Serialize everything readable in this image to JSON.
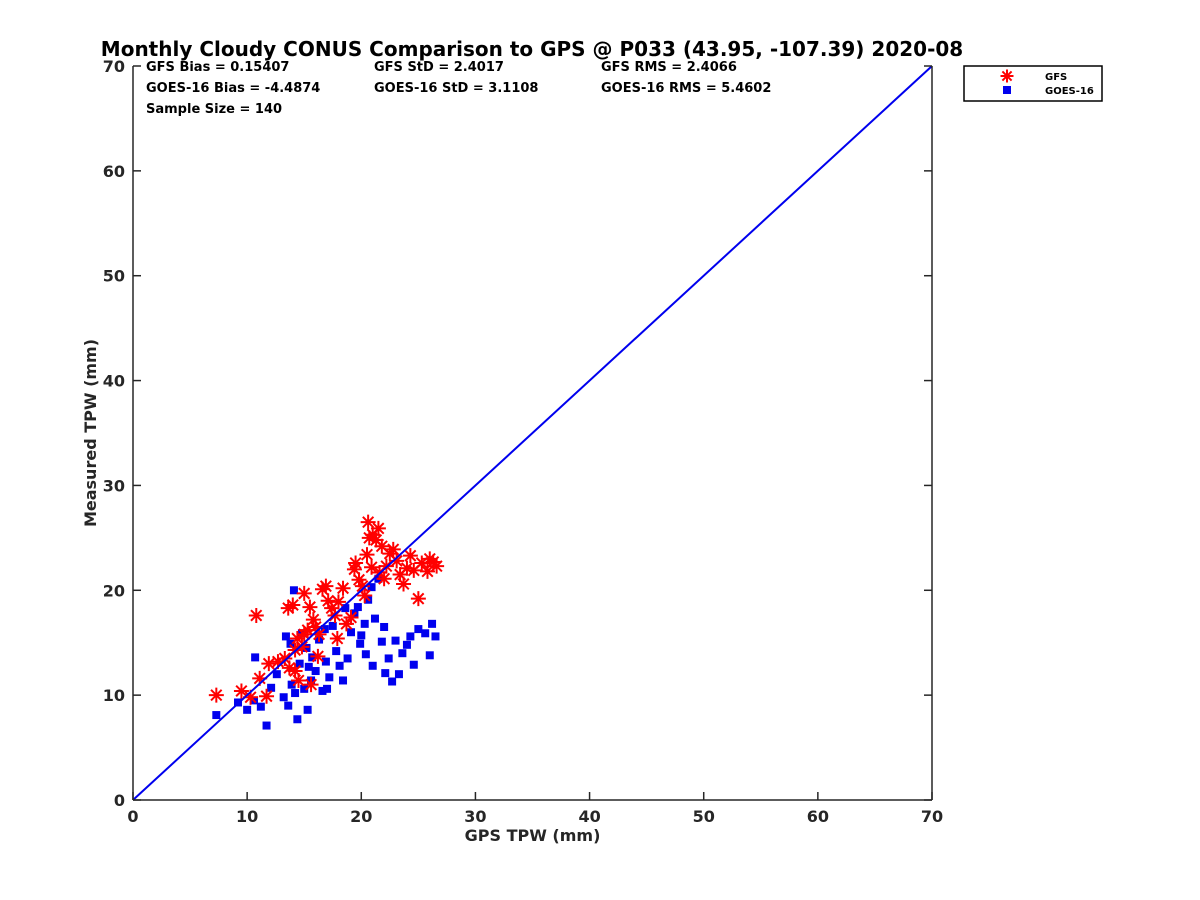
{
  "chart_data": {
    "type": "scatter",
    "title": "Monthly Cloudy CONUS Comparison to GPS @ P033 (43.95, -107.39) 2020-08",
    "xlabel": "GPS TPW (mm)",
    "ylabel": "Measured TPW (mm)",
    "xlim": [
      0,
      70
    ],
    "ylim": [
      0,
      70
    ],
    "xticks": [
      "0",
      "10",
      "20",
      "30",
      "40",
      "50",
      "60",
      "70"
    ],
    "yticks": [
      "0",
      "10",
      "20",
      "30",
      "40",
      "50",
      "60",
      "70"
    ],
    "grid": false,
    "legend_position": "top-right",
    "stats": [
      [
        "GFS Bias = 0.15407",
        "GFS StD = 2.4017",
        "GFS RMS = 2.4066"
      ],
      [
        "GOES-16 Bias = -4.4874",
        "GOES-16 StD = 3.1108",
        "GOES-16 RMS = 5.4602"
      ],
      [
        "Sample Size = 140"
      ]
    ],
    "reference_line": {
      "x": [
        0,
        70
      ],
      "y": [
        0,
        70
      ],
      "color": "#0000ee"
    },
    "series": [
      {
        "name": "GFS",
        "marker": "asterisk",
        "color": "#ff0000",
        "points": [
          [
            7.3,
            10.0
          ],
          [
            9.5,
            10.4
          ],
          [
            10.3,
            9.8
          ],
          [
            11.1,
            11.6
          ],
          [
            11.7,
            9.9
          ],
          [
            10.8,
            17.6
          ],
          [
            11.9,
            13.0
          ],
          [
            12.7,
            13.2
          ],
          [
            13.3,
            13.5
          ],
          [
            13.7,
            12.6
          ],
          [
            14.2,
            12.3
          ],
          [
            14.5,
            11.4
          ],
          [
            13.6,
            18.3
          ],
          [
            14.0,
            18.6
          ],
          [
            14.4,
            15.4
          ],
          [
            14.8,
            14.6
          ],
          [
            15.0,
            15.8
          ],
          [
            15.3,
            16.2
          ],
          [
            15.0,
            19.7
          ],
          [
            15.5,
            18.4
          ],
          [
            15.8,
            17.2
          ],
          [
            16.0,
            16.5
          ],
          [
            16.3,
            15.8
          ],
          [
            16.6,
            20.1
          ],
          [
            16.9,
            20.4
          ],
          [
            17.1,
            19.0
          ],
          [
            17.4,
            18.3
          ],
          [
            17.7,
            17.6
          ],
          [
            18.0,
            18.9
          ],
          [
            18.4,
            20.2
          ],
          [
            18.7,
            16.8
          ],
          [
            19.1,
            17.4
          ],
          [
            19.4,
            22.0
          ],
          [
            19.8,
            21.0
          ],
          [
            20.1,
            20.4
          ],
          [
            20.3,
            19.5
          ],
          [
            20.5,
            23.4
          ],
          [
            20.7,
            25.0
          ],
          [
            20.6,
            26.5
          ],
          [
            21.0,
            25.3
          ],
          [
            21.3,
            24.8
          ],
          [
            21.5,
            25.9
          ],
          [
            21.8,
            24.2
          ],
          [
            22.2,
            22.3
          ],
          [
            22.5,
            23.5
          ],
          [
            22.8,
            23.9
          ],
          [
            23.1,
            22.8
          ],
          [
            23.4,
            21.5
          ],
          [
            23.7,
            20.6
          ],
          [
            24.0,
            22.1
          ],
          [
            24.3,
            23.3
          ],
          [
            24.6,
            21.9
          ],
          [
            25.0,
            19.2
          ],
          [
            25.3,
            22.6
          ],
          [
            25.8,
            21.8
          ],
          [
            26.0,
            23.0
          ],
          [
            26.3,
            22.7
          ],
          [
            26.6,
            22.3
          ],
          [
            22.0,
            21.1
          ],
          [
            21.6,
            21.7
          ],
          [
            14.2,
            14.3
          ],
          [
            15.6,
            11.0
          ],
          [
            16.2,
            13.7
          ],
          [
            17.9,
            15.4
          ],
          [
            19.5,
            22.6
          ],
          [
            20.9,
            22.2
          ]
        ]
      },
      {
        "name": "GOES-16",
        "marker": "square",
        "color": "#0000ee",
        "points": [
          [
            7.3,
            8.1
          ],
          [
            9.2,
            9.3
          ],
          [
            10.0,
            8.6
          ],
          [
            10.6,
            9.5
          ],
          [
            11.2,
            8.9
          ],
          [
            11.7,
            7.1
          ],
          [
            10.7,
            13.6
          ],
          [
            12.1,
            10.7
          ],
          [
            12.6,
            12.0
          ],
          [
            13.2,
            9.8
          ],
          [
            13.6,
            9.0
          ],
          [
            13.9,
            11.0
          ],
          [
            14.2,
            10.2
          ],
          [
            14.4,
            7.7
          ],
          [
            14.6,
            13.0
          ],
          [
            15.0,
            10.6
          ],
          [
            15.3,
            8.6
          ],
          [
            15.6,
            11.4
          ],
          [
            13.4,
            15.6
          ],
          [
            13.8,
            14.9
          ],
          [
            14.1,
            20.0
          ],
          [
            14.8,
            15.9
          ],
          [
            15.2,
            14.5
          ],
          [
            15.7,
            13.6
          ],
          [
            16.0,
            12.3
          ],
          [
            16.3,
            15.3
          ],
          [
            16.6,
            10.4
          ],
          [
            16.9,
            13.2
          ],
          [
            17.2,
            11.7
          ],
          [
            17.5,
            16.6
          ],
          [
            17.8,
            14.2
          ],
          [
            18.1,
            12.8
          ],
          [
            18.4,
            11.4
          ],
          [
            18.8,
            13.5
          ],
          [
            19.1,
            16.0
          ],
          [
            19.4,
            17.8
          ],
          [
            19.7,
            18.4
          ],
          [
            20.0,
            15.7
          ],
          [
            20.3,
            16.8
          ],
          [
            20.6,
            19.1
          ],
          [
            20.9,
            20.3
          ],
          [
            21.2,
            17.3
          ],
          [
            21.5,
            21.1
          ],
          [
            21.8,
            15.1
          ],
          [
            22.1,
            12.1
          ],
          [
            22.4,
            13.5
          ],
          [
            22.7,
            11.3
          ],
          [
            23.0,
            15.2
          ],
          [
            23.3,
            12.0
          ],
          [
            23.6,
            14.0
          ],
          [
            24.0,
            14.8
          ],
          [
            24.3,
            15.6
          ],
          [
            24.6,
            12.9
          ],
          [
            25.0,
            16.3
          ],
          [
            25.6,
            15.9
          ],
          [
            26.0,
            13.8
          ],
          [
            26.2,
            16.8
          ],
          [
            26.5,
            15.6
          ],
          [
            18.6,
            18.3
          ],
          [
            19.9,
            14.9
          ],
          [
            20.4,
            13.9
          ],
          [
            21.0,
            12.8
          ],
          [
            22.0,
            16.5
          ],
          [
            16.8,
            16.3
          ],
          [
            15.4,
            12.7
          ],
          [
            17.0,
            10.6
          ]
        ]
      }
    ]
  }
}
